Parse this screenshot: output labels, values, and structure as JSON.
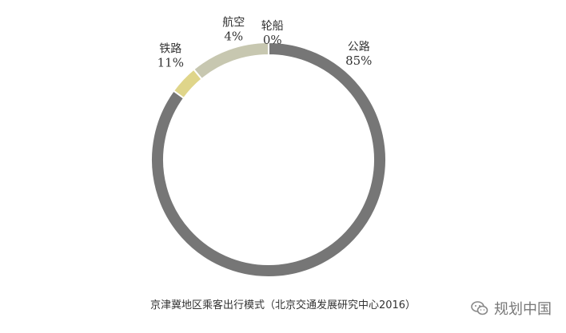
{
  "chart_data": {
    "type": "pie",
    "style": "donut",
    "labels": [
      "公路",
      "轮船",
      "航空",
      "铁路"
    ],
    "values": [
      85,
      0,
      4,
      11
    ],
    "value_labels": [
      "85%",
      "0%",
      "4%",
      "11%"
    ],
    "colors": [
      "#767676",
      "#d9d9d9",
      "#dfd58a",
      "#c7c7b0"
    ],
    "title": ""
  },
  "caption": "京津冀地区乘客出行模式（北京交通发展研究中心2016）",
  "watermark": {
    "text": "规划中国",
    "icon": "wechat-icon"
  }
}
